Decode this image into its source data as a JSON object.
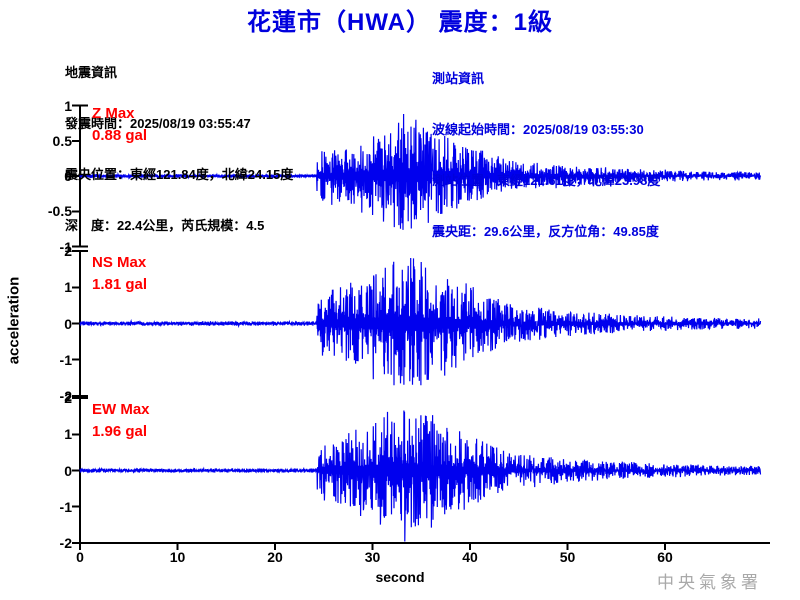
{
  "title": {
    "text": "花蓮市（HWA） 震度：1級"
  },
  "info_left": {
    "heading": "地震資訊",
    "lines": [
      "地震資訊",
      "發震時間：2025/08/19 03:55:47",
      "震央位置：東經121.84度，北緯24.15度",
      "深　度：22.4公里，芮氏規模：4.5"
    ]
  },
  "info_right": {
    "heading": "測站資訊",
    "lines": [
      "測站資訊",
      "波線起始時間：2025/08/19 03:55:30",
      "測站位置：東經121.61度，北緯23.98度",
      "震央距：29.6公里，反方位角：49.85度"
    ]
  },
  "watermark": {
    "text": "中央氣象署"
  },
  "colors": {
    "title_blue": "#0000dd",
    "info_blue": "#0000dd",
    "wave_blue": "#0000ee",
    "label_red": "#ff0000",
    "axis_black": "#000000",
    "watermark_gray": "#a9a9a9"
  },
  "chart_data": {
    "type": "line",
    "title": "花蓮市（HWA） 震度：1級",
    "xlabel": "second",
    "ylabel": "acceleration",
    "units": "gal",
    "x_range": [
      0,
      70
    ],
    "x_ticks": [
      0,
      10,
      20,
      30,
      40,
      50,
      60
    ],
    "grid": false,
    "series": [
      {
        "name": "Z",
        "max_label": "Z Max",
        "max_value": "0.88 gal",
        "peak_gal": 0.88,
        "ylim": [
          -1,
          1
        ],
        "y_ticks": [
          1,
          0.5,
          0,
          -0.5,
          -1
        ]
      },
      {
        "name": "NS",
        "max_label": "NS Max",
        "max_value": "1.81 gal",
        "peak_gal": 1.81,
        "ylim": [
          -2,
          2
        ],
        "y_ticks": [
          2,
          1,
          0,
          -1,
          -2
        ]
      },
      {
        "name": "EW",
        "max_label": "EW Max",
        "max_value": "1.96 gal",
        "peak_gal": 1.96,
        "ylim": [
          -2,
          2
        ],
        "y_ticks": [
          2,
          1,
          0,
          -1,
          -2
        ]
      }
    ],
    "envelope": {
      "onset_s": 24.3,
      "peak_s": 33.5,
      "strong_end_s": 45,
      "end_s": 69.8,
      "onset_frac": 0.45,
      "noise_frac": 0.03,
      "coda_frac": 0.035
    }
  }
}
